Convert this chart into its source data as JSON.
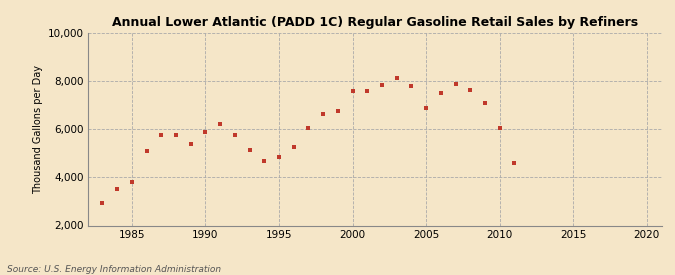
{
  "title": "Annual Lower Atlantic (PADD 1C) Regular Gasoline Retail Sales by Refiners",
  "ylabel": "Thousand Gallons per Day",
  "source": "Source: U.S. Energy Information Administration",
  "background_color": "#f5e6c8",
  "plot_bg_color": "#fdf5e0",
  "marker_color": "#c0392b",
  "xlim": [
    1982,
    2021
  ],
  "ylim": [
    2000,
    10000
  ],
  "xticks": [
    1985,
    1990,
    1995,
    2000,
    2005,
    2010,
    2015,
    2020
  ],
  "yticks": [
    2000,
    4000,
    6000,
    8000,
    10000
  ],
  "years": [
    1983,
    1984,
    1985,
    1986,
    1987,
    1988,
    1989,
    1990,
    1991,
    1992,
    1993,
    1994,
    1995,
    1996,
    1997,
    1998,
    1999,
    2000,
    2001,
    2002,
    2003,
    2004,
    2005,
    2006,
    2007,
    2008,
    2009,
    2010,
    2011
  ],
  "values": [
    2950,
    3500,
    3800,
    5100,
    5750,
    5750,
    5400,
    5900,
    6200,
    5750,
    5150,
    4700,
    4850,
    5250,
    6050,
    6650,
    6750,
    7600,
    7600,
    7850,
    8150,
    7800,
    6900,
    7500,
    7900,
    7650,
    7100,
    6050,
    4600
  ]
}
